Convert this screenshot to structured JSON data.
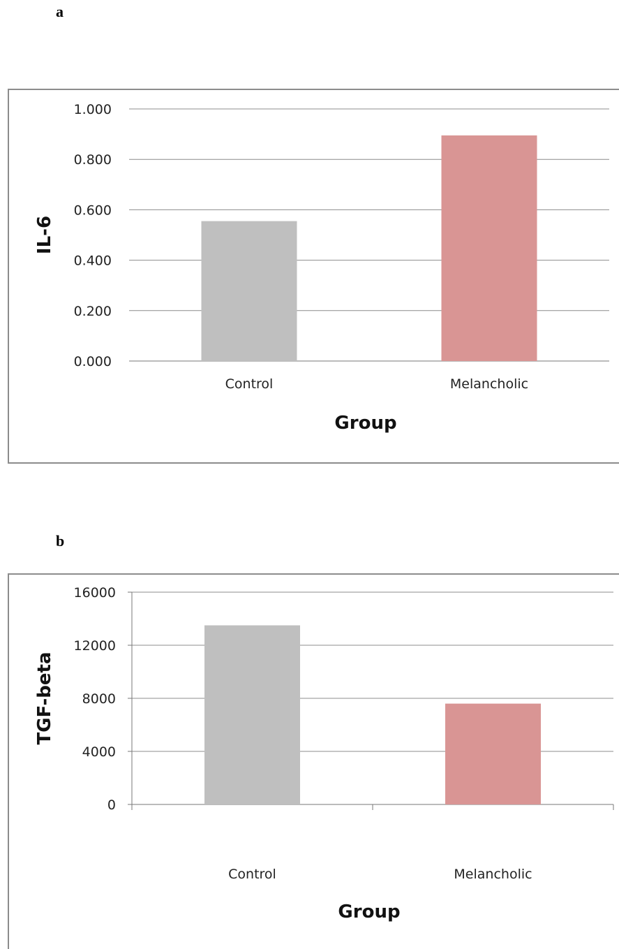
{
  "panels": [
    {
      "label": "a"
    },
    {
      "label": "b"
    }
  ],
  "colors": {
    "control": "#bfbfbf",
    "melancholic": "#d99594",
    "grid": "#8c8c8c",
    "frame": "#8c8c8c"
  },
  "chart_data": [
    {
      "type": "bar",
      "categories": [
        "Control",
        "Melancholic"
      ],
      "values": [
        0.555,
        0.895
      ],
      "xlabel": "Group",
      "ylabel": "IL-6",
      "ylim": [
        0,
        1.0
      ],
      "yticks": [
        "0.000",
        "0.200",
        "0.400",
        "0.600",
        "0.800",
        "1.000"
      ],
      "grid": true,
      "legend": "none"
    },
    {
      "type": "bar",
      "categories": [
        "Control",
        "Melancholic"
      ],
      "values": [
        13500,
        7600
      ],
      "xlabel": "Group",
      "ylabel": "TGF-beta",
      "ylim": [
        0,
        16000
      ],
      "yticks": [
        "0",
        "4000",
        "8000",
        "12000",
        "16000"
      ],
      "grid": true,
      "legend": "none"
    }
  ]
}
